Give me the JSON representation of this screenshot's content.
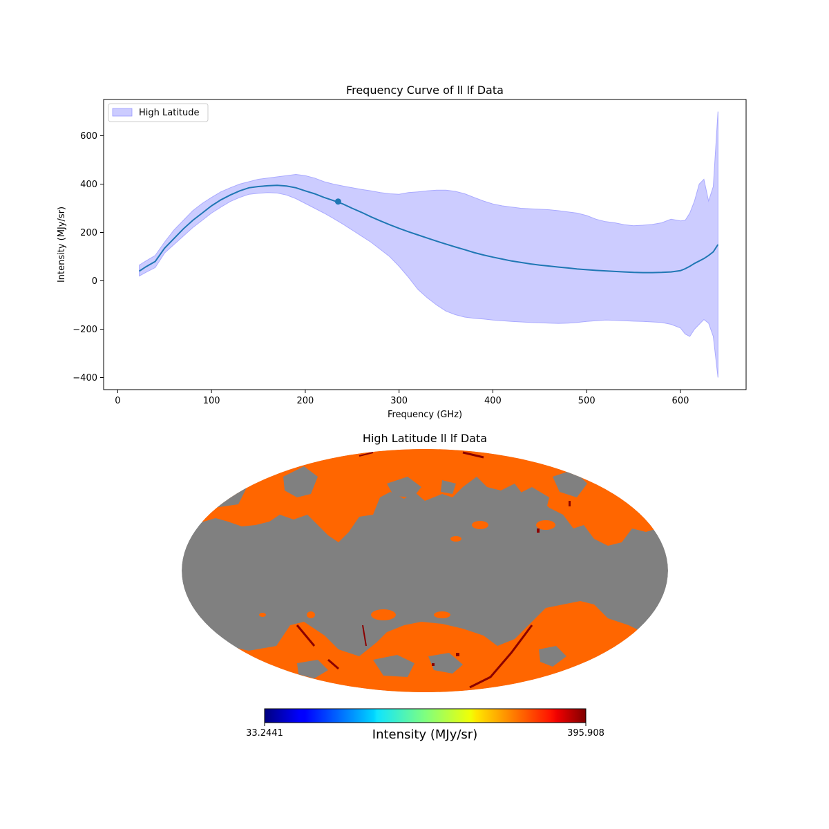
{
  "chart_data": [
    {
      "type": "line",
      "title": "Frequency Curve of ll lf Data",
      "xlabel": "Frequency (GHz)",
      "ylabel": "Intensity (MJy/sr)",
      "xlim": [
        -15,
        670
      ],
      "ylim": [
        -450,
        750
      ],
      "xticks": [
        0,
        100,
        200,
        300,
        400,
        500,
        600
      ],
      "yticks": [
        -400,
        -200,
        0,
        200,
        400,
        600
      ],
      "xtick_labels": [
        "0",
        "100",
        "200",
        "300",
        "400",
        "500",
        "600"
      ],
      "ytick_labels": [
        "−400",
        "−200",
        "0",
        "200",
        "400",
        "600"
      ],
      "line_color": "#1f77b4",
      "band_color": "#ccccff",
      "legend": {
        "label": "High Latitude",
        "placement": "upper-left"
      },
      "highlight_point": {
        "x": 235,
        "y": 328
      },
      "series": [
        {
          "x": [
            23,
            30,
            40,
            50,
            60,
            70,
            80,
            90,
            100,
            110,
            120,
            130,
            140,
            150,
            160,
            170,
            180,
            190,
            200,
            210,
            220,
            230,
            240,
            250,
            260,
            270,
            280,
            290,
            300,
            310,
            320,
            330,
            340,
            350,
            360,
            370,
            380,
            390,
            400,
            410,
            420,
            430,
            440,
            450,
            460,
            470,
            480,
            490,
            500,
            510,
            520,
            530,
            540,
            550,
            560,
            570,
            580,
            590,
            600,
            605,
            610,
            615,
            620,
            625,
            630,
            635,
            640
          ],
          "y": [
            40,
            58,
            80,
            135,
            175,
            215,
            250,
            280,
            310,
            335,
            355,
            372,
            385,
            390,
            393,
            395,
            392,
            385,
            372,
            360,
            345,
            332,
            318,
            300,
            283,
            265,
            248,
            232,
            217,
            203,
            190,
            177,
            164,
            152,
            140,
            129,
            117,
            107,
            98,
            90,
            82,
            76,
            70,
            65,
            61,
            57,
            53,
            49,
            46,
            43,
            41,
            39,
            37,
            35,
            34,
            34,
            35,
            37,
            42,
            50,
            60,
            72,
            82,
            92,
            105,
            120,
            150
          ],
          "upper": [
            65,
            82,
            105,
            160,
            210,
            250,
            290,
            320,
            345,
            368,
            385,
            400,
            410,
            420,
            425,
            430,
            435,
            440,
            435,
            425,
            410,
            400,
            392,
            385,
            378,
            372,
            365,
            360,
            358,
            365,
            368,
            372,
            375,
            375,
            370,
            360,
            345,
            330,
            318,
            310,
            305,
            300,
            298,
            296,
            294,
            290,
            285,
            280,
            270,
            255,
            245,
            240,
            232,
            228,
            230,
            233,
            240,
            255,
            248,
            250,
            280,
            330,
            400,
            420,
            330,
            390,
            700
          ],
          "lower": [
            20,
            35,
            55,
            115,
            150,
            185,
            220,
            250,
            280,
            305,
            328,
            345,
            358,
            362,
            365,
            363,
            355,
            340,
            320,
            300,
            280,
            258,
            235,
            210,
            185,
            160,
            130,
            100,
            60,
            15,
            -35,
            -70,
            -100,
            -125,
            -140,
            -150,
            -155,
            -158,
            -162,
            -165,
            -168,
            -170,
            -172,
            -173,
            -175,
            -176,
            -175,
            -172,
            -168,
            -165,
            -162,
            -163,
            -165,
            -167,
            -168,
            -170,
            -172,
            -180,
            -195,
            -220,
            -230,
            -200,
            -180,
            -160,
            -175,
            -230,
            -400
          ]
        }
      ]
    },
    {
      "type": "heatmap",
      "title": "High Latitude ll lf Data",
      "projection": "mollweide",
      "colorbar": {
        "label": "Intensity (MJy/sr)",
        "min_label": "33.2441",
        "max_label": "395.908",
        "colormap": "jet"
      },
      "colors": {
        "masked": "#808080",
        "dominant": "#ff6600",
        "high": "#8b0000"
      }
    }
  ]
}
